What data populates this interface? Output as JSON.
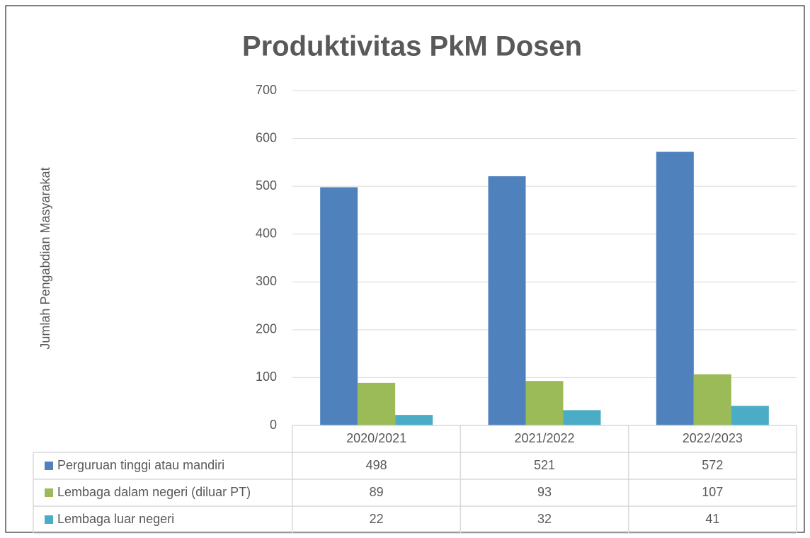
{
  "chart_data": {
    "type": "bar",
    "title": "Produktivitas PkM Dosen",
    "y_label": "Jumlah Pengabdian Masyarakat",
    "categories": [
      "2020/2021",
      "2021/2022",
      "2022/2023"
    ],
    "series": [
      {
        "name": "Perguruan tinggi atau mandiri",
        "color": "#4f81bd",
        "values": [
          498,
          521,
          572
        ]
      },
      {
        "name": "Lembaga dalam negeri (diluar PT)",
        "color": "#9bbb59",
        "values": [
          89,
          93,
          107
        ]
      },
      {
        "name": "Lembaga luar negeri",
        "color": "#4bacc6",
        "values": [
          22,
          32,
          41
        ]
      }
    ],
    "ylim": [
      0,
      700
    ],
    "yticks": [
      0,
      100,
      200,
      300,
      400,
      500,
      600,
      700
    ],
    "grid": true,
    "data_table": true
  }
}
